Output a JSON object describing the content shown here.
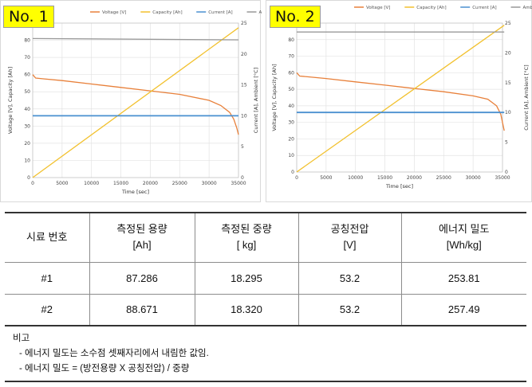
{
  "chart_data": [
    {
      "type": "line",
      "badge": "No. 1",
      "xlabel": "Time [sec]",
      "ylabel_left": "Voltage [V], Capacity [Ah]",
      "ylabel_right": "Current [A], Ambient [°C]",
      "xlim": [
        0,
        35000
      ],
      "ylim_left": [
        0,
        90
      ],
      "ylim_right": [
        0,
        25
      ],
      "x_ticks": [
        0,
        5000,
        10000,
        15000,
        20000,
        25000,
        30000,
        35000
      ],
      "y_ticks_left": [
        0,
        10,
        20,
        30,
        40,
        50,
        60,
        70,
        80,
        90
      ],
      "y_ticks_right": [
        0,
        5,
        10,
        15,
        20,
        25
      ],
      "grid": true,
      "legend_position": "top",
      "series": [
        {
          "name": "Voltage [V]",
          "axis": "left",
          "color": "#e8803a",
          "x": [
            0,
            500,
            2000,
            5000,
            10000,
            15000,
            20000,
            25000,
            30000,
            32000,
            33500,
            34200,
            34700,
            35000
          ],
          "y": [
            60,
            58,
            57.5,
            56.5,
            54.5,
            52.5,
            50.5,
            48.5,
            45,
            42,
            38,
            34,
            29,
            25
          ]
        },
        {
          "name": "Capacity [Ah]",
          "axis": "left",
          "color": "#f2c12e",
          "x": [
            0,
            35000
          ],
          "y": [
            0,
            87.3
          ]
        },
        {
          "name": "Current [A]",
          "axis": "right",
          "color": "#4a90d0",
          "x": [
            0,
            35000
          ],
          "y": [
            10,
            10
          ]
        },
        {
          "name": "Ambient [°C]",
          "axis": "right",
          "color": "#999999",
          "x": [
            0,
            35000
          ],
          "y": [
            22.5,
            22.3
          ]
        }
      ]
    },
    {
      "type": "line",
      "badge": "No. 2",
      "xlabel": "Time [sec]",
      "ylabel_left": "Voltage [V], Capacity [Ah]",
      "ylabel_right": "Current [A], Ambient [°C]",
      "xlim": [
        0,
        35000
      ],
      "ylim_left": [
        0,
        90
      ],
      "ylim_right": [
        0,
        25
      ],
      "x_ticks": [
        0,
        5000,
        10000,
        15000,
        20000,
        25000,
        30000,
        35000
      ],
      "y_ticks_left": [
        0,
        10,
        20,
        30,
        40,
        50,
        60,
        70,
        80,
        90
      ],
      "y_ticks_right": [
        0,
        5,
        10,
        15,
        20,
        25
      ],
      "grid": true,
      "legend_position": "top",
      "series": [
        {
          "name": "Voltage [V]",
          "axis": "left",
          "color": "#e8803a",
          "x": [
            0,
            500,
            2000,
            5000,
            10000,
            15000,
            20000,
            25000,
            30000,
            32500,
            34000,
            34700,
            35300
          ],
          "y": [
            60,
            58,
            57.5,
            56.5,
            54.5,
            52.5,
            50.5,
            48.5,
            46,
            44,
            40,
            35,
            25
          ]
        },
        {
          "name": "Capacity [Ah]",
          "axis": "left",
          "color": "#f2c12e",
          "x": [
            0,
            35300
          ],
          "y": [
            0,
            88.7
          ]
        },
        {
          "name": "Current [A]",
          "axis": "right",
          "color": "#4a90d0",
          "x": [
            0,
            35300
          ],
          "y": [
            10,
            10
          ]
        },
        {
          "name": "Ambient [°C]",
          "axis": "right",
          "color": "#999999",
          "x": [
            0,
            35300
          ],
          "y": [
            23.5,
            23.5
          ]
        }
      ]
    }
  ],
  "table": {
    "headers": {
      "sample": "시료 번호",
      "capacity_line1": "측정된 용량",
      "capacity_line2": "[Ah]",
      "weight_line1": "측정된 중량",
      "weight_line2": "[ kg]",
      "voltage_line1": "공칭전압",
      "voltage_line2": "[V]",
      "energy_line1": "에너지 밀도",
      "energy_line2": "[Wh/kg]"
    },
    "rows": [
      {
        "sample": "#1",
        "capacity": "87.286",
        "weight": "18.295",
        "voltage": "53.2",
        "energy": "253.81"
      },
      {
        "sample": "#2",
        "capacity": "88.671",
        "weight": "18.320",
        "voltage": "53.2",
        "energy": "257.49"
      }
    ]
  },
  "notes": {
    "title": "비고",
    "lines": [
      "- 에너지 밀도는 소수점 셋째자리에서 내림한 값임.",
      "- 에너지 밀도 = (방전용량 X 공칭전압) / 중량"
    ]
  }
}
